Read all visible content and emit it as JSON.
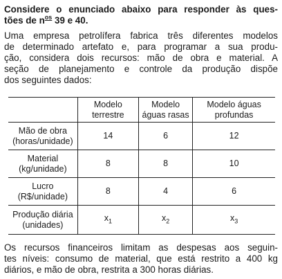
{
  "header": {
    "line1": "Considere o enunciado abaixo para responder às ques-",
    "line2_a": "tões de n",
    "line2_sup": "os",
    "line2_b": " 39 e 40."
  },
  "intro": [
    "Uma empresa petrolífera fabrica três diferentes modelos",
    "de determinado artefato e, para programar a sua produ-",
    "ção, considera dois recursos: mão de obra e material. A",
    "seção de planejamento e controle da produção dispõe",
    "dos seguintes dados:"
  ],
  "table": {
    "columns": [
      [
        "Modelo",
        "terrestre"
      ],
      [
        "Modelo",
        "águas rasas"
      ],
      [
        "Modelo águas",
        "profundas"
      ]
    ],
    "rows": [
      {
        "label": [
          "Mão de obra",
          "(horas/unidade)"
        ],
        "values": [
          14,
          6,
          12
        ]
      },
      {
        "label": [
          "Material",
          "(kg/unidade)"
        ],
        "values": [
          8,
          8,
          10
        ]
      },
      {
        "label": [
          "Lucro",
          "(R$/unidade)"
        ],
        "values": [
          8,
          4,
          6
        ]
      },
      {
        "label": [
          "Produção diária",
          "(unidades)"
        ],
        "vars": [
          {
            "base": "x",
            "sub": "1"
          },
          {
            "base": "x",
            "sub": "2"
          },
          {
            "base": "x",
            "sub": "3"
          }
        ]
      }
    ]
  },
  "closing": [
    "Os recursos financeiros limitam as despesas aos seguin-",
    "tes níveis: consumo de material, que está restrito a 400 kg",
    "diários, e mão de obra, restrita a 300 horas diárias."
  ]
}
